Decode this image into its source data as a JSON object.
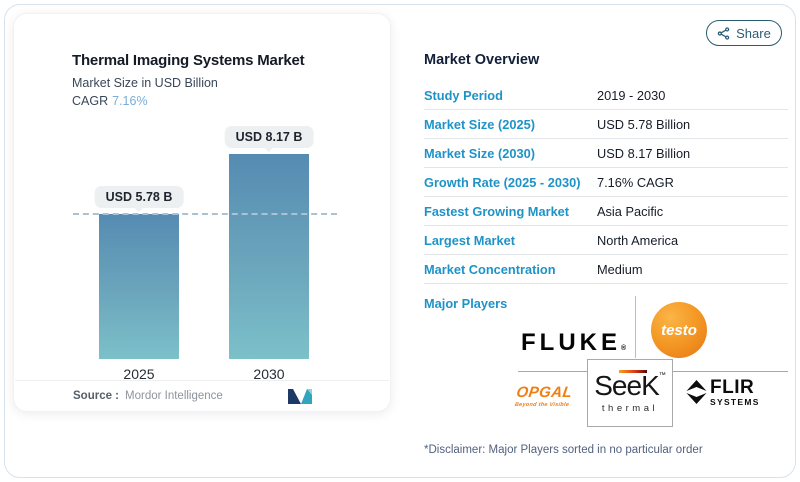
{
  "share": {
    "label": "Share"
  },
  "chart_data": {
    "type": "bar",
    "title": "Thermal Imaging Systems Market",
    "subtitle": "Market Size in USD Billion",
    "cagr_label": "CAGR",
    "cagr_value": "7.16%",
    "categories": [
      "2025",
      "2030"
    ],
    "values": [
      5.78,
      8.17
    ],
    "value_labels": [
      "USD 5.78 B",
      "USD 8.17 B"
    ],
    "reference_line": 5.78,
    "ylim": [
      0,
      8.17
    ],
    "grid": false,
    "legend": false,
    "source_label": "Source :",
    "source_value": "Mordor Intelligence"
  },
  "overview": {
    "heading": "Market Overview",
    "rows": [
      {
        "label": "Study Period",
        "value": "2019 - 2030"
      },
      {
        "label": "Market Size (2025)",
        "value": "USD 5.78 Billion"
      },
      {
        "label": "Market Size (2030)",
        "value": "USD 8.17 Billion"
      },
      {
        "label": "Growth Rate (2025 - 2030)",
        "value": "7.16% CAGR"
      },
      {
        "label": "Fastest Growing Market",
        "value": "Asia Pacific"
      },
      {
        "label": "Largest Market",
        "value": "North America"
      },
      {
        "label": "Market Concentration",
        "value": "Medium"
      }
    ],
    "major_players_label": "Major Players",
    "players": [
      "Fluke",
      "testo",
      "Opgal",
      "Seek Thermal",
      "FLIR Systems"
    ]
  },
  "logos": {
    "fluke_text": "FLUKE",
    "fluke_reg": "®",
    "testo_text": "testo",
    "opgal_text": "OPGAL",
    "opgal_tagline": "Beyond the Visible",
    "seek_text": "SeeK",
    "seek_tm": "™",
    "seek_sub": "thermal",
    "flir_text": "FLIR",
    "flir_sub": "SYSTEMS"
  },
  "disclaimer": "*Disclaimer: Major Players sorted in no particular order",
  "colors": {
    "accent_blue": "#1e93c8",
    "cagr_blue": "#78aeda",
    "bar_top": "#568bb2",
    "bar_bottom": "#7cc0c9",
    "dash_line": "#a9c3d5",
    "share_teal": "#2b5d72",
    "testo_orange": "#f2921f",
    "opgal_orange": "#f07e12",
    "card_border": "#d7e3ea"
  }
}
